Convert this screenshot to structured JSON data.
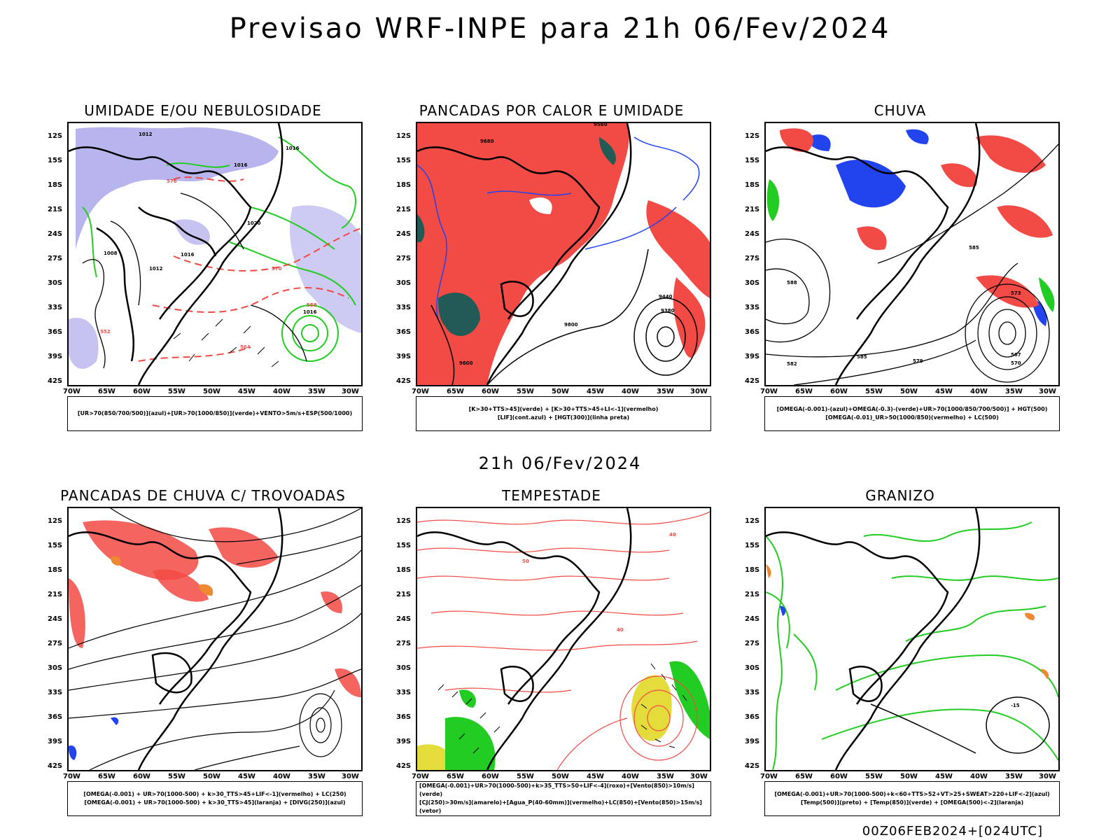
{
  "header": {
    "title": "Previsao WRF-INPE  para 21h 06/Fev/2024",
    "mid_date": "21h 06/Fev/2024",
    "footer": "00Z06FEB2024+[024UTC]"
  },
  "axes": {
    "lat_labels": [
      "12S",
      "15S",
      "18S",
      "21S",
      "24S",
      "27S",
      "30S",
      "33S",
      "36S",
      "39S",
      "42S"
    ],
    "lon_labels": [
      "70W",
      "65W",
      "60W",
      "55W",
      "50W",
      "45W",
      "40W",
      "35W",
      "30W"
    ]
  },
  "panels": [
    {
      "title": "UMIDADE E/OU NEBULOSIDADE",
      "legend": [
        "[UR>70(850/700/500)](azul)+[UR>70(1000/850)](verde)+VENTO>5m/s+ESP(500/1000)"
      ],
      "contour_labels": [
        "1012",
        "1016",
        "1016",
        "1020",
        "1008",
        "1012",
        "1016",
        "576",
        "570",
        "564",
        "552",
        "558",
        "1016"
      ]
    },
    {
      "title": "PANCADAS POR CALOR E UMIDADE",
      "legend": [
        "[K>30+TTS>45](verde) + [K>30+TTS>45+LI<-1](vermelho)",
        "[LIF](cont.azul) + [HGT(300)](linha preta)"
      ],
      "contour_labels": [
        "9560",
        "9680",
        "9800",
        "9440",
        "9380",
        "9600"
      ]
    },
    {
      "title": "CHUVA",
      "legend": [
        "[OMEGA(-0.001)-(azul)+OMEGA(-0.3)-(verde)+UR>70(1000/850/700/500)] + HGT(500)",
        "[OMEGA(-0.01)_UR>50(1000/850)(vermelho) + LC(500)"
      ],
      "contour_labels": [
        "588",
        "585",
        "582",
        "579",
        "573",
        "570",
        "567",
        "585"
      ]
    },
    {
      "title": "PANCADAS DE CHUVA C/ TROVOADAS",
      "legend": [
        "[OMEGA(-0.001) + UR>70(1000-500) + k>30_TTS>45+LIF<-1](vermelho) + LC(250)",
        "[OMEGA(-0.001) + UR>70(1000-500) + k>30_TTS>45](laranja) + [DIVG(250)](azul)"
      ],
      "contour_labels": []
    },
    {
      "title": "TEMPESTADE",
      "legend": [
        "[OMEGA(-0.001)+UR>70(1000-500)+k>35_TTS>50+LIF<-4](roxo)+[Vento(850)>10m/s](verde)",
        "[CJ(250)>30m/s](amarelo)+[Agua_P(40-60mm)](vermelho)+LC(850)+[Vento(850)>15m/s](vetor)"
      ],
      "contour_labels": [
        "40",
        "40",
        "50"
      ]
    },
    {
      "title": "GRANIZO",
      "legend": [
        "[OMEGA(-0.001)+UR>70(1000-500)+k<60+TTS>52+VT>25+SWEAT>220+LIF<-2](azul)",
        "[Temp(500)](preto) + [Temp(850)](verde) + [OMEGA(500)<-2](laranja)"
      ],
      "contour_labels": [
        "-15"
      ]
    }
  ],
  "colors": {
    "red": "#f24a44",
    "green": "#22cc22",
    "blue": "#2244ee",
    "lavender": "#b8b4ee",
    "teal": "#225a55",
    "yellow": "#e4dc3a",
    "orange": "#ee8833",
    "black": "#000000"
  }
}
